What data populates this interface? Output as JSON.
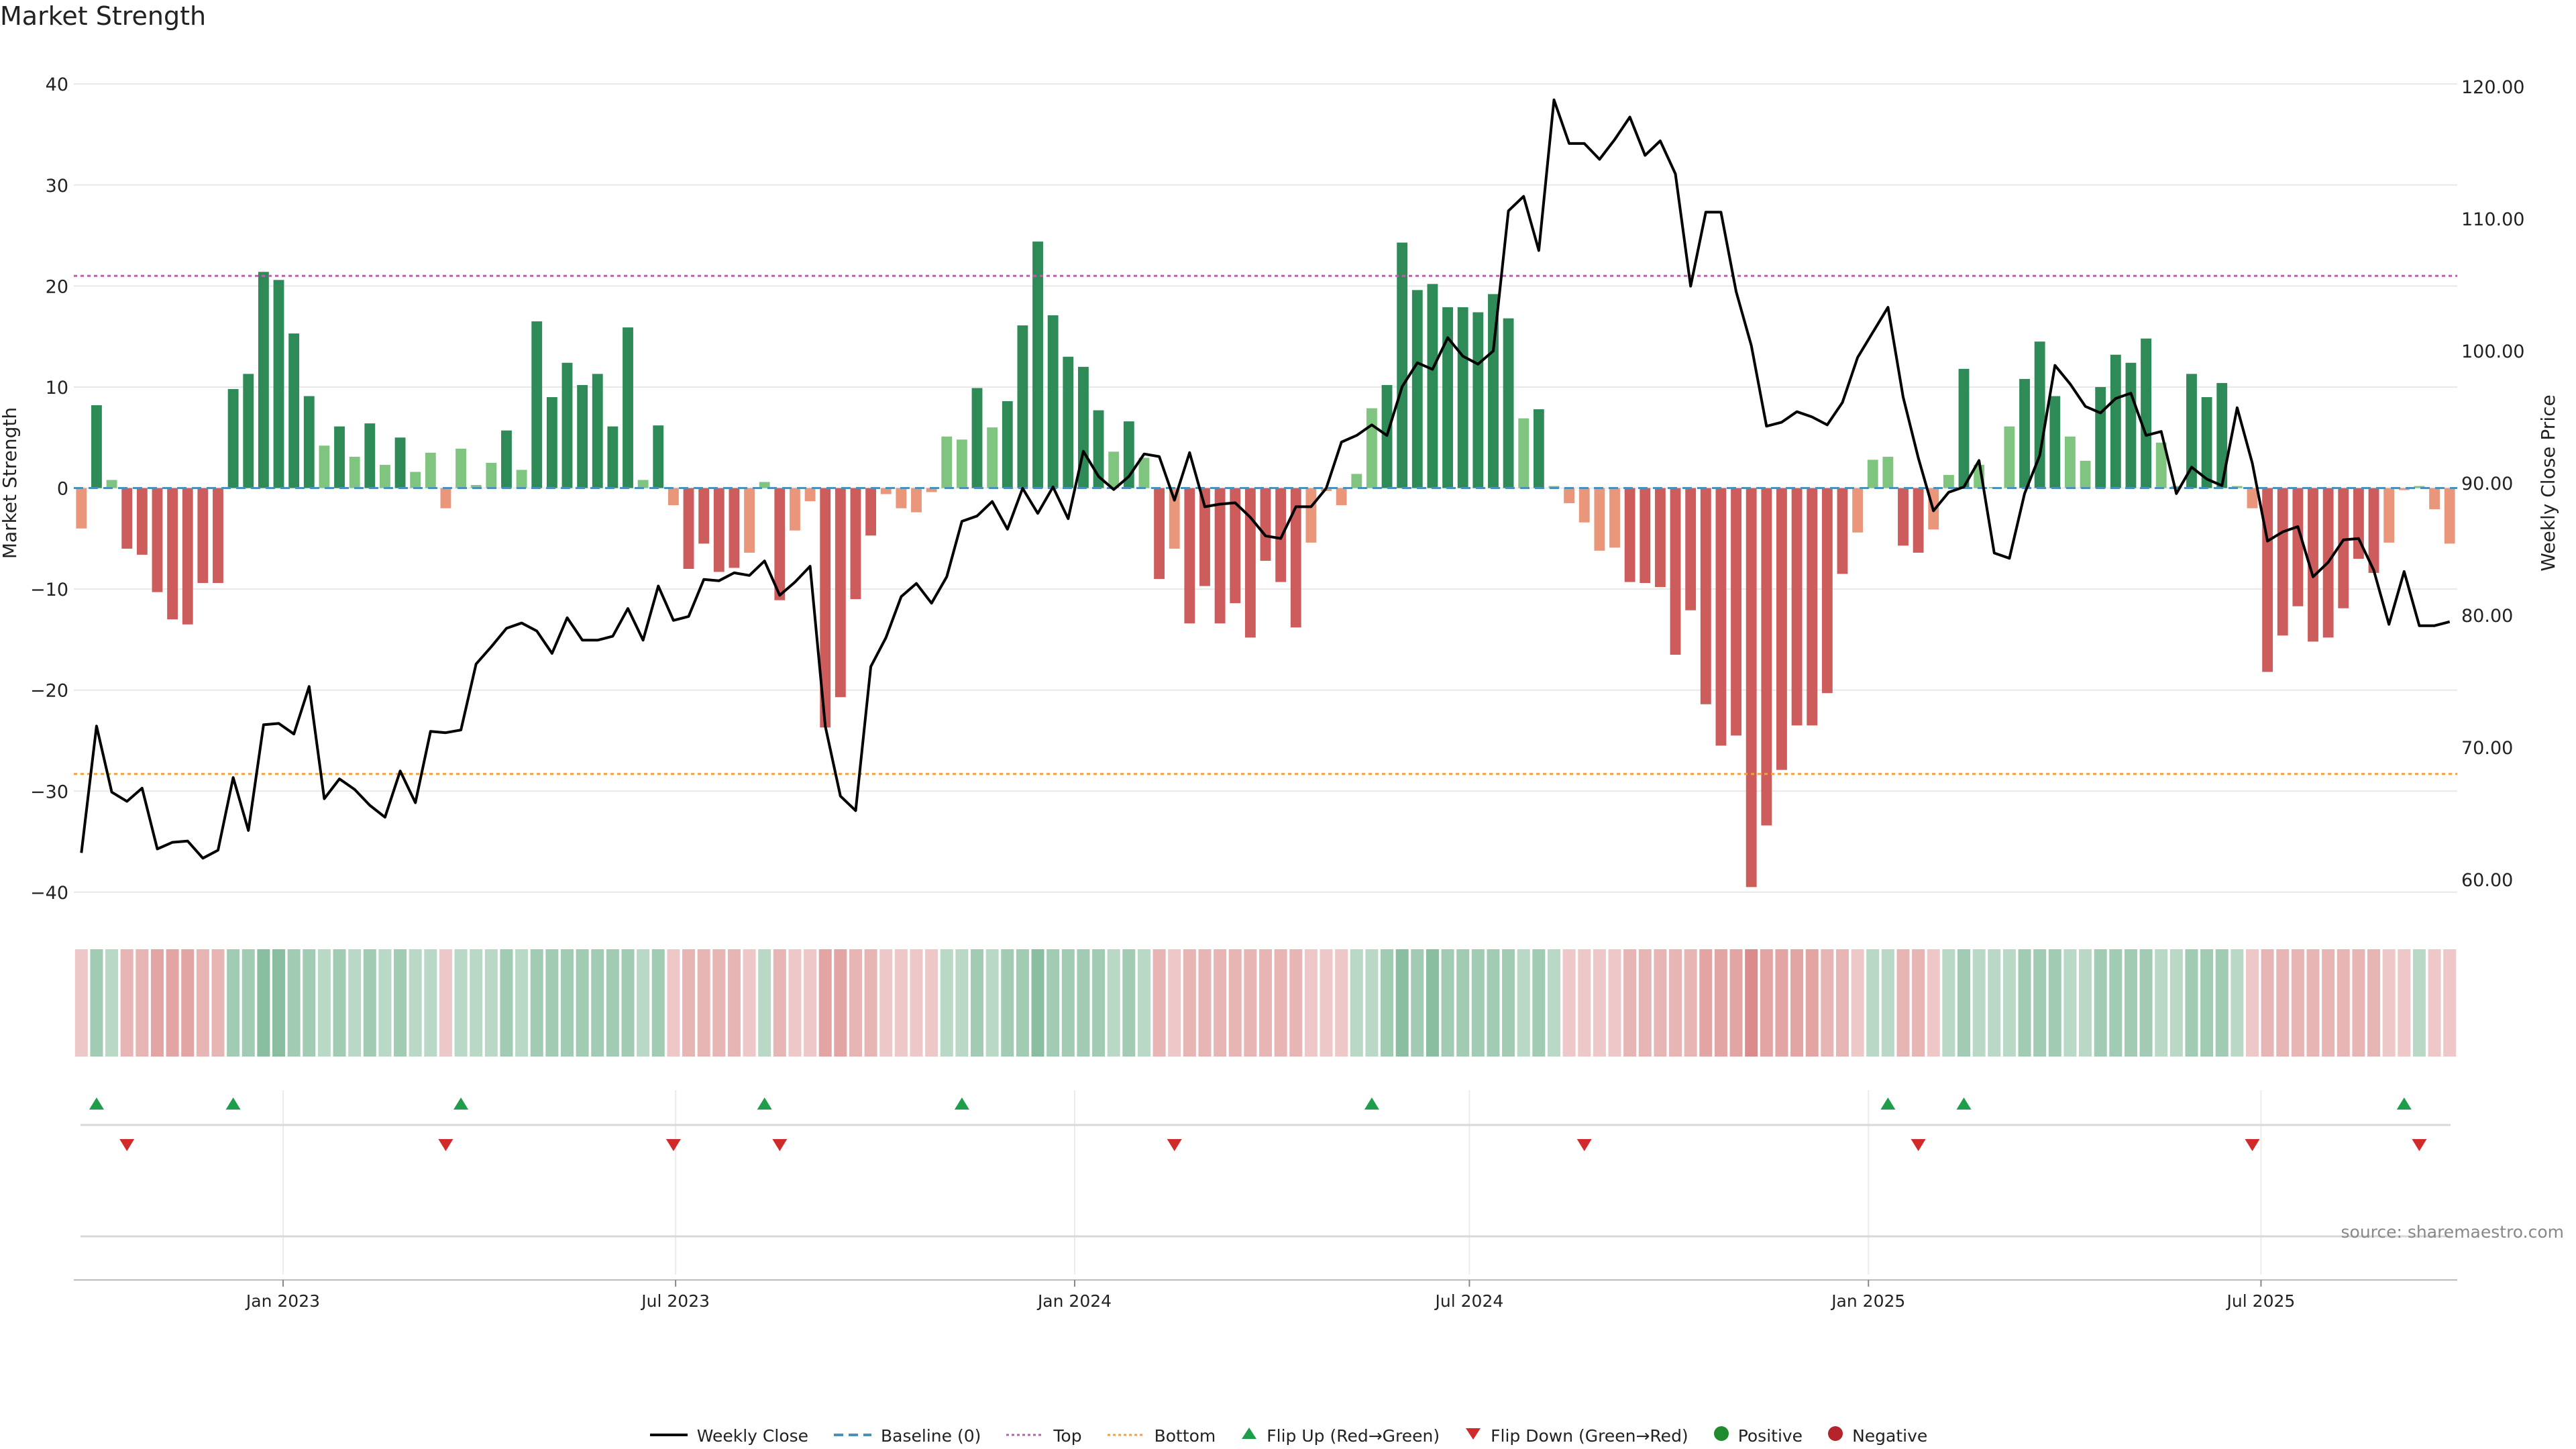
{
  "title": "Market Strength",
  "source": "source: sharemaestro.com",
  "colors": {
    "strong_pos": "#2e8b57",
    "weak_pos": "#7fc47f",
    "strong_neg": "#cd5c5c",
    "weak_neg": "#e9967a",
    "baseline": "#4a90b8",
    "top_line": "#b565a7",
    "bottom_line": "#f0a045",
    "price_line": "#000000",
    "flip_up": "#1e9e4a",
    "flip_down": "#d02a2a",
    "grid": "#e8e8e8"
  },
  "chart_data": {
    "type": "bar",
    "title": "Market Strength",
    "ylabel": "Market Strength",
    "y2label": "Weekly Close Price",
    "ylim": [
      -42,
      43
    ],
    "y2lim": [
      57.5,
      122.5
    ],
    "yticks": [
      "40",
      "30",
      "20",
      "10",
      "0",
      "−10",
      "−20",
      "−30",
      "−40"
    ],
    "yticks_values": [
      40,
      30,
      20,
      10,
      0,
      -10,
      -20,
      -30,
      -40
    ],
    "y2ticks": [
      "120.00",
      "110.00",
      "100.00",
      "90.00",
      "80.00",
      "70.00",
      "60.00"
    ],
    "y2ticks_values": [
      120,
      110,
      100,
      90,
      80,
      70,
      60
    ],
    "xticks": [
      "Jan 2023",
      "Jul 2023",
      "Jan 2024",
      "Jul 2024",
      "Jan 2025",
      "Jul 2025"
    ],
    "xticks_values": [
      "2023-01-01",
      "2023-07-01",
      "2024-01-01",
      "2024-07-01",
      "2025-01-01",
      "2025-07-01"
    ],
    "x_start": "2022-09-30",
    "week_interval_days": 7,
    "top_threshold": 21,
    "bottom_threshold": -28.3,
    "strength": [
      -4,
      8.2,
      0.8,
      -6,
      -6.6,
      -10.3,
      -13,
      -13.5,
      -9.4,
      -9.4,
      9.8,
      11.3,
      21.4,
      20.6,
      15.3,
      9.1,
      4.2,
      6.1,
      3.1,
      6.4,
      2.3,
      5,
      1.6,
      3.5,
      -2,
      3.9,
      0.3,
      2.5,
      5.7,
      1.8,
      16.5,
      9,
      12.4,
      10.2,
      11.3,
      6.1,
      15.9,
      0.8,
      6.2,
      -1.7,
      -8,
      -5.5,
      -8.3,
      -7.9,
      -6.4,
      0.6,
      -11.1,
      -4.2,
      -1.3,
      -23.7,
      -20.7,
      -11,
      -4.7,
      -0.6,
      -2,
      -2.4,
      -0.4,
      5.1,
      4.8,
      9.9,
      6,
      8.6,
      16.1,
      24.4,
      17.1,
      13,
      12,
      7.7,
      3.6,
      6.6,
      3,
      -9,
      -6,
      -13.4,
      -9.7,
      -13.4,
      -11.4,
      -14.8,
      -7.2,
      -9.3,
      -13.8,
      -5.4,
      -0.3,
      -1.7,
      1.4,
      7.9,
      10.2,
      24.3,
      19.6,
      20.2,
      17.9,
      17.9,
      17.4,
      19.2,
      16.8,
      6.9,
      7.8,
      0.2,
      -1.5,
      -3.4,
      -6.2,
      -5.9,
      -9.3,
      -9.4,
      -9.8,
      -16.5,
      -12.1,
      -21.4,
      -25.5,
      -24.5,
      -39.5,
      -33.4,
      -27.9,
      -23.5,
      -23.5,
      -20.3,
      -8.5,
      -4.4,
      2.8,
      3.1,
      -5.7,
      -6.4,
      -4.1,
      1.3,
      11.8,
      2.3,
      0.1,
      6.1,
      10.8,
      14.5,
      9.1,
      5.1,
      2.7,
      10,
      13.2,
      12.4,
      14.8,
      4.5,
      0.2,
      11.3,
      9,
      10.4,
      0.2,
      -2,
      -18.2,
      -14.6,
      -11.7,
      -15.2,
      -14.8,
      -11.9,
      -7,
      -8.4,
      -5.4,
      -0.2,
      0.2,
      -2.1,
      -5.5
    ],
    "close": [
      62,
      71.6,
      66.6,
      65.9,
      66.9,
      62.3,
      62.8,
      62.9,
      61.6,
      62.2,
      67.7,
      63.7,
      71.7,
      71.8,
      71,
      74.6,
      66.1,
      67.6,
      66.8,
      65.6,
      64.7,
      68.2,
      65.8,
      71.2,
      71.1,
      71.3,
      76.3,
      77.6,
      79,
      79.4,
      78.8,
      77.1,
      79.8,
      78.1,
      78.1,
      78.4,
      80.5,
      78.1,
      82.2,
      79.6,
      79.9,
      82.7,
      82.6,
      83.2,
      83,
      84.1,
      81.5,
      82.5,
      83.7,
      71.6,
      66.3,
      65.2,
      76.1,
      78.3,
      81.4,
      82.4,
      80.9,
      82.9,
      87.1,
      87.5,
      88.6,
      86.5,
      89.6,
      87.7,
      89.7,
      87.3,
      92.4,
      90.5,
      89.5,
      90.5,
      92.2,
      92,
      88.7,
      92.3,
      88.2,
      88.4,
      88.5,
      87.4,
      86,
      85.8,
      88.2,
      88.2,
      89.6,
      93.1,
      93.6,
      94.4,
      93.6,
      97.3,
      99.1,
      98.6,
      101,
      99.6,
      99,
      100,
      110.6,
      111.7,
      107.6,
      119,
      115.7,
      115.7,
      114.5,
      116,
      117.7,
      114.8,
      115.9,
      113.4,
      104.9,
      110.5,
      110.5,
      104.5,
      100.4,
      94.3,
      94.6,
      95.4,
      95,
      94.4,
      96.1,
      99.5,
      101.4,
      103.3,
      96.5,
      91.9,
      87.9,
      89.3,
      89.7,
      91.7,
      84.7,
      84.3,
      89.2,
      92.1,
      98.9,
      97.5,
      95.8,
      95.3,
      96.4,
      96.8,
      93.6,
      93.9,
      89.2,
      91.2,
      90.3,
      89.8,
      95.7,
      91.5,
      85.6,
      86.3,
      86.7,
      82.9,
      84,
      85.7,
      85.8,
      83.4,
      79.3,
      83.3,
      79.2,
      79.2,
      79.5
    ],
    "strength_shade": [
      1,
      2,
      1,
      2,
      2,
      3,
      3,
      3,
      2,
      2,
      2,
      2,
      3,
      3,
      2,
      2,
      1,
      2,
      1,
      2,
      1,
      2,
      1,
      1,
      1,
      1,
      1,
      1,
      2,
      1,
      2,
      2,
      2,
      2,
      2,
      2,
      2,
      1,
      2,
      1,
      2,
      2,
      2,
      2,
      1,
      1,
      2,
      1,
      1,
      3,
      3,
      2,
      2,
      1,
      1,
      1,
      1,
      1,
      1,
      2,
      1,
      2,
      2,
      3,
      2,
      2,
      2,
      2,
      1,
      2,
      1,
      2,
      1,
      2,
      2,
      2,
      2,
      2,
      2,
      2,
      2,
      1,
      1,
      1,
      1,
      1,
      2,
      3,
      2,
      3,
      2,
      2,
      2,
      2,
      2,
      1,
      2,
      1,
      1,
      1,
      1,
      1,
      2,
      2,
      2,
      2,
      2,
      3,
      3,
      3,
      4,
      3,
      3,
      3,
      3,
      2,
      2,
      1,
      1,
      1,
      2,
      2,
      1,
      1,
      2,
      1,
      1,
      1,
      2,
      2,
      2,
      1,
      1,
      2,
      2,
      2,
      2,
      1,
      1,
      2,
      2,
      2,
      1,
      1,
      2,
      2,
      2,
      2,
      2,
      2,
      2,
      2,
      1,
      1,
      1,
      1,
      1
    ],
    "flip_up_weeks": [
      1,
      10,
      25,
      45,
      58,
      85,
      119,
      124,
      153
    ],
    "flip_down_weeks": [
      3,
      24,
      39,
      46,
      72,
      99,
      121,
      143,
      154
    ],
    "legend": [
      {
        "label": "Weekly Close",
        "symbol": "line"
      },
      {
        "label": "Baseline (0)",
        "symbol": "dash"
      },
      {
        "label": "Top",
        "symbol": "dot-purple"
      },
      {
        "label": "Bottom",
        "symbol": "dot-orange"
      },
      {
        "label": "Flip Up (Red→Green)",
        "symbol": "tri-up"
      },
      {
        "label": "Flip Down (Green→Red)",
        "symbol": "tri-down"
      },
      {
        "label": "Positive",
        "symbol": "circle-green"
      },
      {
        "label": "Negative",
        "symbol": "circle-red"
      }
    ]
  }
}
